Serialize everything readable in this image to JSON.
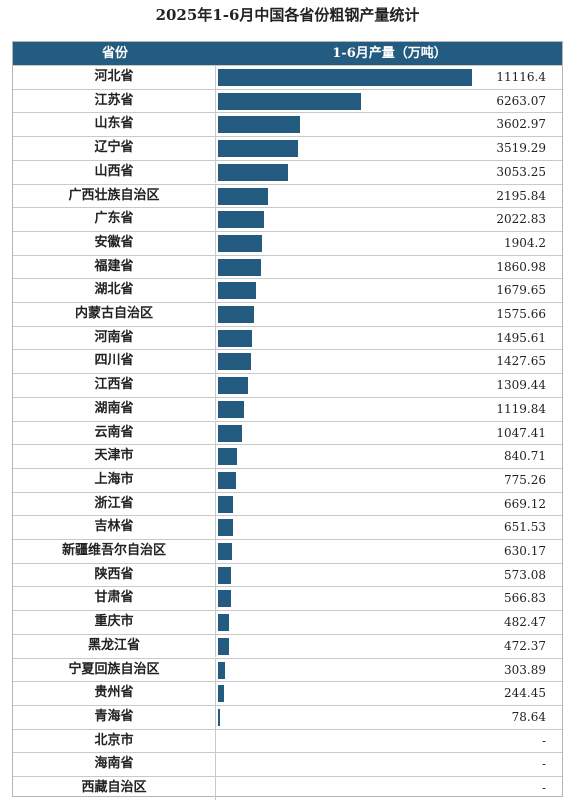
{
  "title": "2025年1-6月中国各省份粗钢产量统计",
  "header": {
    "province": "省份",
    "value": "1-6月产量（万吨）"
  },
  "colors": {
    "bar": "#245b80",
    "header_bg": "#245b80"
  },
  "chart_data": {
    "type": "bar",
    "orientation": "horizontal",
    "title": "2025年1-6月中国各省份粗钢产量统计",
    "xlabel": "1-6月产量（万吨）",
    "ylabel": "省份",
    "xlim": [
      0,
      11116.4
    ],
    "categories": [
      "河北省",
      "江苏省",
      "山东省",
      "辽宁省",
      "山西省",
      "广西壮族自治区",
      "广东省",
      "安徽省",
      "福建省",
      "湖北省",
      "内蒙古自治区",
      "河南省",
      "四川省",
      "江西省",
      "湖南省",
      "云南省",
      "天津市",
      "上海市",
      "浙江省",
      "吉林省",
      "新疆维吾尔自治区",
      "陕西省",
      "甘肃省",
      "重庆市",
      "黑龙江省",
      "宁夏回族自治区",
      "贵州省",
      "青海省",
      "北京市",
      "海南省",
      "西藏自治区"
    ],
    "values": [
      11116.4,
      6263.07,
      3602.97,
      3519.29,
      3053.25,
      2195.84,
      2022.83,
      1904.2,
      1860.98,
      1679.65,
      1575.66,
      1495.61,
      1427.65,
      1309.44,
      1119.84,
      1047.41,
      840.71,
      775.26,
      669.12,
      651.53,
      630.17,
      573.08,
      566.83,
      482.47,
      472.37,
      303.89,
      244.45,
      78.64,
      null,
      null,
      null
    ],
    "labels": [
      "11116.4",
      "6263.07",
      "3602.97",
      "3519.29",
      "3053.25",
      "2195.84",
      "2022.83",
      "1904.2",
      "1860.98",
      "1679.65",
      "1575.66",
      "1495.61",
      "1427.65",
      "1309.44",
      "1119.84",
      "1047.41",
      "840.71",
      "775.26",
      "669.12",
      "651.53",
      "630.17",
      "573.08",
      "566.83",
      "482.47",
      "472.37",
      "303.89",
      "244.45",
      "78.64",
      "-",
      "-",
      "-"
    ]
  }
}
